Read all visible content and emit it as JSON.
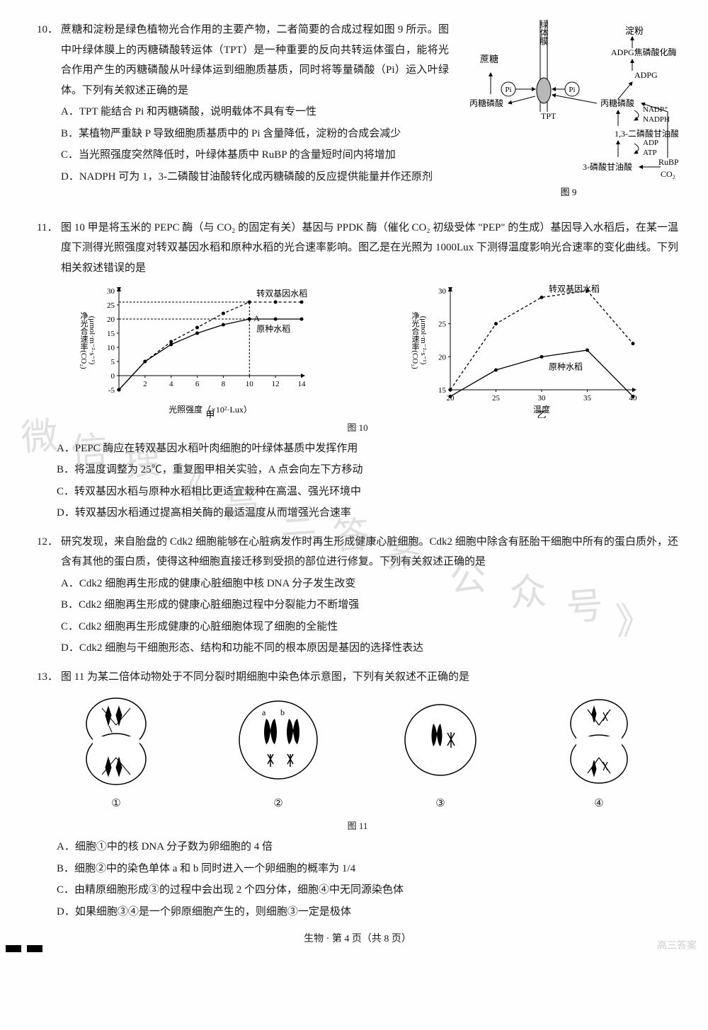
{
  "q10": {
    "num": "10．",
    "stem1": "蔗糖和淀粉是绿色植物光合作用的主要产物，二者简要的合成过程如图 9 所示。图中叶绿体膜上的丙糖磷酸转运体（TPT）是一种重要的反向共转运体蛋白，能将光合作用产生的丙糖磷酸从叶绿体运到细胞质基质，同时将等量磷酸（Pi）运入叶绿体。下列有关叙述正确的是",
    "optA": "A．TPT 能结合 Pi 和丙糖磷酸，说明载体不具有专一性",
    "optB": "B．某植物严重缺 P 导致细胞质基质中的 Pi 含量降低，淀粉的合成会减少",
    "optC": "C．当光照强度突然降低时，叶绿体基质中 RuBP 的含量短时间内将增加",
    "optD": "D．NADPH 可为 1，3-二磷酸甘油酸转化成丙糖磷酸的反应提供能量并作还原剂",
    "diagram": {
      "labels": {
        "membrane": "叶绿体膜",
        "sucrose": "蔗糖",
        "starch": "淀粉",
        "adpg_enzyme": "ADPG焦磷酸化酶",
        "adpg": "ADPG",
        "pi1": "Pi",
        "pi2": "Pi",
        "triose_p_left": "丙糖磷酸",
        "tpt": "TPT",
        "triose_p_right": "丙糖磷酸",
        "nadp": "NADP⁺",
        "nadph": "NADPH",
        "bpg": "1,3-二磷酸甘油酸",
        "adp": "ADP",
        "atp": "ATP",
        "pga": "3-磷酸甘油酸",
        "rubp": "RuBP",
        "co2": "CO₂",
        "caption": "图 9"
      },
      "colors": {
        "line": "#000000",
        "bg": "#ffffff",
        "oval": "#b8b8b8"
      }
    }
  },
  "q11": {
    "num": "11．",
    "stem": "图 10 甲是将玉米的 PEPC 酶（与 CO₂ 的固定有关）基因与 PPDK 酶（催化 CO₂ 初级受体 \"PEP\" 的生成）基因导入水稻后，在某一温度下测得光照强度对转双基因水稻和原种水稻的光合速率影响。图乙是在光照为 1000Lux 下测得温度影响光合速率的变化曲线。下列相关叙述错误的是",
    "optA": "A．PEPC 酶应在转双基因水稻叶肉细胞的叶绿体基质中发挥作用",
    "optB": "B．将温度调整为 25℃，重复图甲相关实验，A 点会向左下方移动",
    "optC": "C．转双基因水稻与原种水稻相比更适宜栽种在高温、强光环境中",
    "optD": "D．转双基因水稻通过提高相关酶的最适温度从而增强光合速率",
    "fig_caption": "图 10",
    "chart_a": {
      "type": "line",
      "title": "甲",
      "ylabel": "净光合速率(CO₂)\n(μmol·m⁻²·s⁻¹)",
      "xlabel": "光照强度（×10²·Lux）",
      "xlim": [
        0,
        14
      ],
      "ylim": [
        -5,
        30
      ],
      "xticks": [
        2,
        4,
        6,
        8,
        10,
        12,
        14
      ],
      "yticks": [
        -5,
        0,
        5,
        10,
        15,
        20,
        25,
        30
      ],
      "series": [
        {
          "name": "转双基因水稻",
          "dash": "4,3",
          "marker": "circle",
          "color": "#000",
          "points": [
            [
              0,
              -5
            ],
            [
              2,
              5
            ],
            [
              4,
              12
            ],
            [
              6,
              17
            ],
            [
              8,
              22
            ],
            [
              10,
              26
            ],
            [
              12,
              26
            ],
            [
              14,
              26
            ]
          ]
        },
        {
          "name": "原种水稻",
          "dash": "none",
          "marker": "circle",
          "color": "#000",
          "points": [
            [
              0,
              -5
            ],
            [
              2,
              5
            ],
            [
              4,
              11
            ],
            [
              6,
              15
            ],
            [
              8,
              18
            ],
            [
              10,
              20
            ],
            [
              12,
              20
            ],
            [
              14,
              20
            ]
          ]
        }
      ],
      "annotation": "A"
    },
    "chart_b": {
      "type": "line",
      "title": "乙",
      "ylabel": "净光合速率(CO₂)\n(μmol·m⁻²·s⁻¹)",
      "xlabel": "温度",
      "xticks": [
        20,
        25,
        30,
        35,
        40
      ],
      "yticks": [
        15,
        20,
        25,
        30
      ],
      "series": [
        {
          "name": "转双基因水稻",
          "dash": "4,3",
          "marker": "circle",
          "color": "#000",
          "points": [
            [
              20,
              15
            ],
            [
              25,
              25
            ],
            [
              30,
              29
            ],
            [
              35,
              30
            ],
            [
              40,
              22
            ]
          ]
        },
        {
          "name": "原种水稻",
          "dash": "none",
          "marker": "circle",
          "color": "#000",
          "points": [
            [
              20,
              14
            ],
            [
              25,
              18
            ],
            [
              30,
              20
            ],
            [
              35,
              21
            ],
            [
              40,
              14
            ]
          ]
        }
      ]
    }
  },
  "q12": {
    "num": "12．",
    "stem": "研究发现，来自胎盘的 Cdk2 细胞能够在心脏病发作时再生形成健康心脏细胞。Cdk2 细胞中除含有胚胎干细胞中所有的蛋白质外，还含有其他的蛋白质，使得这种细胞直接迁移到受损的部位进行修复。下列有关叙述正确的是",
    "optA": "A．Cdk2 细胞再生形成的健康心脏细胞中核 DNA 分子发生改变",
    "optB": "B．Cdk2 细胞再生形成的健康心脏细胞过程中分裂能力不断增强",
    "optC": "C．Cdk2 细胞再生形成健康的心脏细胞体现了细胞的全能性",
    "optD": "D．Cdk2 细胞与干细胞形态、结构和功能不同的根本原因是基因的选择性表达"
  },
  "q13": {
    "num": "13．",
    "stem": "图 11 为某二倍体动物处于不同分裂时期细胞中染色体示意图，下列有关叙述不正确的是",
    "labels": {
      "c1": "①",
      "c2": "②",
      "c3": "③",
      "c4": "④",
      "cap": "图 11",
      "a": "a",
      "b": "b"
    },
    "optA": "A．细胞①中的核 DNA 分子数为卵细胞的 4 倍",
    "optB": "B．细胞②中的染色单体 a 和 b 同时进入一个卵细胞的概率为 1/4",
    "optC": "C．由精原细胞形成③的过程中会出现 2 个四分体，细胞④中无同源染色体",
    "optD": "D．如果细胞③④是一个卵原细胞产生的，则细胞③一定是极体"
  },
  "footer": "生物 · 第 4 页（共 8 页）",
  "watermark": {
    "w1": "微",
    "w2": "信",
    "w3": "搜",
    "w4": "《",
    "w5": "高",
    "w6": "三",
    "w7": "答",
    "w8": "案",
    "w9": "公",
    "w10": "众",
    "w11": "号",
    "w12": "》"
  },
  "corner": "高三答案"
}
